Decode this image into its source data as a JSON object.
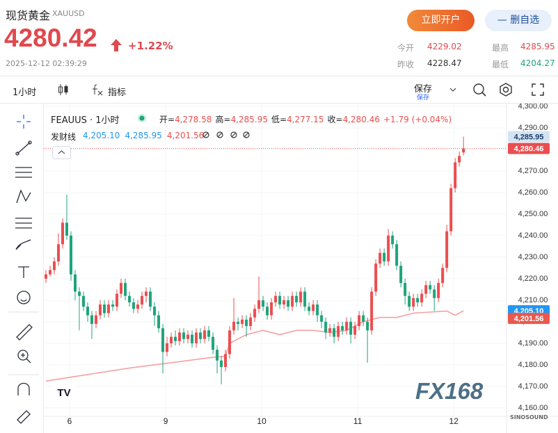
{
  "header": {
    "name": "现货黄金",
    "symbol": "XAUUSD",
    "price": 4280.42,
    "change": "+1.22%",
    "time": "2025-12-12 02:39:29",
    "buttons": [
      "立即开户",
      "— 删自选"
    ],
    "stats": [
      {
        "label": "今开",
        "value": 4229.02,
        "color": "#e0484d"
      },
      {
        "label": "最高",
        "value": 4285.95,
        "color": "#e0484d"
      },
      {
        "label": "昨收",
        "value": 4228.47,
        "color": "#333333"
      },
      {
        "label": "最低",
        "value": 4204.27,
        "color": "#1fa37a"
      }
    ]
  },
  "toolbar": {
    "interval": "1小时",
    "indicator": "指标",
    "save": "保存",
    "save_sub": "保存"
  },
  "chart_data": {
    "type": "candlestick",
    "title": "FEAUUS · 1小时",
    "legend": [
      {
        "label": "开=",
        "value": "4,278.58"
      },
      {
        "label": "高=",
        "value": "4,285.95"
      },
      {
        "label": "低=",
        "value": "4,277.15"
      },
      {
        "label": "收=",
        "value": "4,280.46"
      },
      {
        "label": "",
        "value": "+1.79 (+0.04%)"
      }
    ],
    "up_color": "#eb4d4f",
    "down_color": "#1fa37a",
    "open": [
      4220,
      4222,
      4224,
      4228,
      4236,
      4246,
      4240,
      4222,
      4214,
      4212,
      4207,
      4203,
      4199,
      4203,
      4208,
      4204,
      4208,
      4207,
      4213,
      4218,
      4212,
      4209,
      4206,
      4208,
      4212,
      4214,
      4207,
      4203,
      4197,
      4186,
      4190,
      4193,
      4191,
      4195,
      4192,
      4194,
      4190,
      4195,
      4192,
      4196,
      4193,
      4187,
      4182,
      4179,
      4185,
      4196,
      4200,
      4199,
      4201,
      4198,
      4202,
      4206,
      4210,
      4207,
      4203,
      4209,
      4212,
      4208,
      4210,
      4207,
      4212,
      4209,
      4214,
      4207,
      4205,
      4208,
      4203,
      4200,
      4195,
      4197,
      4193,
      4198,
      4196,
      4200,
      4194,
      4198,
      4203,
      4200,
      4196,
      4214,
      4227,
      4232,
      4228,
      4240,
      4236,
      4226,
      4218,
      4212,
      4207,
      4211,
      4209,
      4213,
      4217,
      4215,
      4211,
      4218,
      4225,
      4242,
      4262,
      4274,
      4278.58
    ],
    "high": [
      4224,
      4226,
      4230,
      4241,
      4248,
      4259,
      4242,
      4224,
      4216,
      4214,
      4209,
      4205,
      4205,
      4210,
      4210,
      4210,
      4210,
      4215,
      4220,
      4220,
      4214,
      4211,
      4210,
      4214,
      4216,
      4216,
      4209,
      4205,
      4199,
      4193,
      4195,
      4196,
      4197,
      4197,
      4196,
      4196,
      4197,
      4197,
      4198,
      4198,
      4195,
      4189,
      4184,
      4187,
      4198,
      4211,
      4202,
      4203,
      4203,
      4204,
      4208,
      4221,
      4212,
      4209,
      4211,
      4214,
      4214,
      4212,
      4212,
      4214,
      4214,
      4216,
      4216,
      4209,
      4210,
      4210,
      4205,
      4202,
      4199,
      4199,
      4200,
      4200,
      4202,
      4202,
      4200,
      4205,
      4205,
      4202,
      4216,
      4229,
      4234,
      4234,
      4243,
      4242,
      4238,
      4228,
      4220,
      4214,
      4213,
      4213,
      4215,
      4219,
      4219,
      4217,
      4220,
      4227,
      4245,
      4264,
      4276,
      4279,
      4285.95
    ],
    "low": [
      4218,
      4221,
      4222,
      4226,
      4234,
      4238,
      4219,
      4210,
      4196,
      4205,
      4200,
      4192,
      4197,
      4201,
      4202,
      4202,
      4205,
      4205,
      4211,
      4210,
      4207,
      4204,
      4204,
      4206,
      4209,
      4205,
      4198,
      4195,
      4176,
      4184,
      4188,
      4189,
      4189,
      4190,
      4190,
      4188,
      4188,
      4190,
      4190,
      4191,
      4185,
      4176,
      4171,
      4177,
      4183,
      4194,
      4196,
      4197,
      4193,
      4196,
      4200,
      4204,
      4205,
      4201,
      4201,
      4207,
      4206,
      4206,
      4205,
      4205,
      4207,
      4207,
      4205,
      4203,
      4203,
      4200,
      4197,
      4192,
      4193,
      4190,
      4191,
      4194,
      4194,
      4190,
      4192,
      4196,
      4198,
      4181,
      4194,
      4212,
      4225,
      4226,
      4226,
      4234,
      4224,
      4216,
      4208,
      4205,
      4205,
      4207,
      4207,
      4211,
      4213,
      4205,
      4209,
      4216,
      4223,
      4240,
      4260,
      4272,
      4277.15
    ],
    "close": [
      4222,
      4224,
      4228,
      4236,
      4246,
      4240,
      4222,
      4214,
      4212,
      4207,
      4203,
      4199,
      4203,
      4208,
      4204,
      4208,
      4207,
      4213,
      4218,
      4212,
      4209,
      4206,
      4208,
      4212,
      4214,
      4207,
      4203,
      4197,
      4186,
      4190,
      4193,
      4191,
      4195,
      4192,
      4194,
      4190,
      4195,
      4192,
      4196,
      4193,
      4187,
      4182,
      4179,
      4185,
      4196,
      4200,
      4199,
      4201,
      4198,
      4202,
      4206,
      4210,
      4207,
      4203,
      4209,
      4212,
      4208,
      4210,
      4207,
      4212,
      4209,
      4214,
      4207,
      4205,
      4208,
      4203,
      4200,
      4195,
      4197,
      4193,
      4198,
      4196,
      4200,
      4194,
      4198,
      4203,
      4200,
      4196,
      4214,
      4227,
      4232,
      4228,
      4240,
      4236,
      4226,
      4218,
      4212,
      4207,
      4211,
      4209,
      4213,
      4217,
      4215,
      4211,
      4218,
      4225,
      4242,
      4262,
      4274,
      4277,
      4280.46
    ],
    "ma": {
      "name": "发财线",
      "color": "#f5a0a0",
      "values_legend": [
        {
          "value": "4,205.10",
          "color": "#2196f3"
        },
        {
          "value": "4,285.95",
          "color": "#2196f3"
        },
        {
          "value": "4,201.56",
          "color": "#eb4d4f"
        }
      ],
      "x": [
        0,
        10,
        20,
        30,
        40,
        43,
        44,
        48,
        52,
        56,
        60,
        64,
        68,
        72,
        76,
        80,
        84,
        88,
        92,
        96,
        98,
        100
      ],
      "values": [
        4172.5,
        4175.5,
        4178.5,
        4181,
        4183.5,
        4184,
        4190,
        4194,
        4196,
        4194,
        4196,
        4196,
        4195,
        4196,
        4200,
        4202,
        4202,
        4204,
        4204.5,
        4205,
        4203,
        4205.1
      ]
    },
    "xlim": [
      -0.5,
      110.3
    ],
    "xticks": [
      {
        "value": 5.67,
        "label": "6"
      },
      {
        "value": 28.67,
        "label": "9"
      },
      {
        "value": 51.67,
        "label": "10"
      },
      {
        "value": 74.67,
        "label": "11"
      },
      {
        "value": 97.67,
        "label": "12"
      }
    ],
    "ylim": [
      4156.1,
      4301.3
    ],
    "yticks": [
      {
        "value": 4160,
        "label": "4,160.00"
      },
      {
        "value": 4170,
        "label": "4,170.00"
      },
      {
        "value": 4180,
        "label": "4,180.00"
      },
      {
        "value": 4190,
        "label": "4,190.00"
      },
      {
        "value": 4200,
        "label": "4,200.00"
      },
      {
        "value": 4210,
        "label": "4,210.00"
      },
      {
        "value": 4220,
        "label": "4,220.00"
      },
      {
        "value": 4230,
        "label": "4,230.00"
      },
      {
        "value": 4240,
        "label": "4,240.00"
      },
      {
        "value": 4250,
        "label": "4,250.00"
      },
      {
        "value": 4260,
        "label": "4,260.00"
      },
      {
        "value": 4270,
        "label": "4,270.00"
      },
      {
        "value": 4280,
        "label": "4,280.00"
      },
      {
        "value": 4290,
        "label": "4,290.00"
      },
      {
        "value": 4300,
        "label": "4,300.00"
      }
    ],
    "price_tags": [
      {
        "value": 4285.95,
        "label": "4,285.95",
        "color": "#d3e3f3",
        "text_color": "#1a3d66"
      },
      {
        "value": 4280.46,
        "label": "4,280.46",
        "color": "#eb4d4f",
        "text_color": "#ffffff"
      },
      {
        "value": 4205.1,
        "label": "4,205.10",
        "color": "#2196f3",
        "text_color": "#ffffff"
      },
      {
        "value": 4201.56,
        "label": "4,201.56",
        "color": "#e8584e",
        "text_color": "#ffffff"
      }
    ],
    "last_price_line": true,
    "watermark": "FX168",
    "logo": "SINOSOUND"
  }
}
